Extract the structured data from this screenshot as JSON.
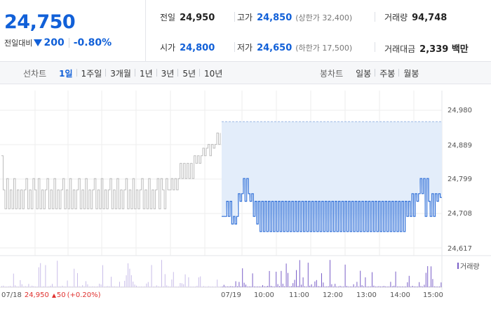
{
  "quote": {
    "price": "24,750",
    "change_label": "전일대비",
    "change_amount": "200",
    "change_rate": "-0.80%",
    "stats": {
      "prev_close_label": "전일",
      "prev_close": "24,950",
      "high_label": "고가",
      "high": "24,850",
      "upper_limit": "(상한가 32,400)",
      "volume_label": "거래량",
      "volume": "94,748",
      "open_label": "시가",
      "open": "24,800",
      "low_label": "저가",
      "low": "24,650",
      "lower_limit": "(하한가 17,500)",
      "amount_label": "거래대금",
      "amount": "2,339 백만"
    }
  },
  "tabs": {
    "line_label": "선차트",
    "line_periods": [
      "1일",
      "1주일",
      "3개월",
      "1년",
      "3년",
      "5년",
      "10년"
    ],
    "line_active": 0,
    "candle_label": "봉차트",
    "candle_periods": [
      "일봉",
      "주봉",
      "월봉"
    ]
  },
  "chart_data": {
    "type": "line",
    "y_ticks": [
      "24,980",
      "24,889",
      "24,799",
      "24,708",
      "24,617"
    ],
    "ylim": [
      24617,
      24980
    ],
    "x_ticks": [
      "07/19",
      "10:00",
      "11:00",
      "12:00",
      "13:00",
      "14:00",
      "15:00"
    ],
    "volume_label": "거래량",
    "prev_day": {
      "date": "07/18",
      "close": "24,950",
      "change": "50",
      "change_rate": "(+0.20%)",
      "color": "#bdbdbd",
      "values": [
        24860,
        24770,
        24720,
        24800,
        24720,
        24770,
        24720,
        24800,
        24720,
        24770,
        24720,
        24770,
        24720,
        24770,
        24800,
        24720,
        24770,
        24720,
        24800,
        24770,
        24720,
        24800,
        24720,
        24770,
        24720,
        24770,
        24800,
        24720,
        24770,
        24720,
        24800,
        24720,
        24770,
        24720,
        24770,
        24800,
        24720,
        24770,
        24720,
        24800,
        24720,
        24770,
        24720,
        24770,
        24800,
        24720,
        24770,
        24720,
        24800,
        24720,
        24770,
        24720,
        24770,
        24800,
        24720,
        24770,
        24720,
        24800,
        24720,
        24770,
        24720,
        24770,
        24800,
        24720,
        24770,
        24720,
        24800,
        24720,
        24770,
        24720,
        24770,
        24800,
        24720,
        24770,
        24720,
        24800,
        24720,
        24770,
        24720,
        24770,
        24800,
        24720,
        24770,
        24720,
        24800,
        24720,
        24770,
        24720,
        24770,
        24800,
        24720,
        24800,
        24770,
        24720,
        24800,
        24770,
        24770,
        24800,
        24770,
        24800,
        24770,
        24800,
        24840,
        24800,
        24840,
        24800,
        24840,
        24800,
        24840,
        24800,
        24860,
        24840,
        24860,
        24840,
        24860,
        24880,
        24860,
        24880,
        24890,
        24860,
        24890,
        24880,
        24890,
        24920,
        24890,
        24920
      ]
    },
    "today": {
      "line_color": "#2f6fd8",
      "fill_color": "#e3edfa",
      "baseline": 24950,
      "values": [
        24700,
        24700,
        24700,
        24740,
        24700,
        24740,
        24680,
        24700,
        24680,
        24700,
        24760,
        24740,
        24760,
        24800,
        24740,
        24800,
        24760,
        24740,
        24760,
        24700,
        24740,
        24680,
        24740,
        24660,
        24740,
        24660,
        24740,
        24660,
        24740,
        24660,
        24740,
        24660,
        24740,
        24660,
        24740,
        24660,
        24740,
        24660,
        24740,
        24660,
        24740,
        24660,
        24740,
        24660,
        24740,
        24660,
        24740,
        24660,
        24740,
        24660,
        24740,
        24660,
        24740,
        24660,
        24740,
        24660,
        24740,
        24660,
        24740,
        24660,
        24740,
        24660,
        24740,
        24660,
        24740,
        24660,
        24740,
        24660,
        24740,
        24660,
        24740,
        24660,
        24740,
        24660,
        24740,
        24660,
        24740,
        24660,
        24740,
        24660,
        24740,
        24660,
        24740,
        24660,
        24740,
        24660,
        24740,
        24660,
        24740,
        24660,
        24740,
        24660,
        24740,
        24660,
        24740,
        24660,
        24740,
        24660,
        24740,
        24660,
        24740,
        24660,
        24740,
        24660,
        24740,
        24660,
        24740,
        24660,
        24740,
        24660,
        24740,
        24700,
        24740,
        24700,
        24760,
        24700,
        24760,
        24740,
        24760,
        24800,
        24760,
        24800,
        24700,
        24800,
        24740,
        24700,
        24760,
        24700,
        24760,
        24740,
        24760,
        24750,
        24750
      ]
    },
    "volume_color": "#7a5fc8"
  }
}
